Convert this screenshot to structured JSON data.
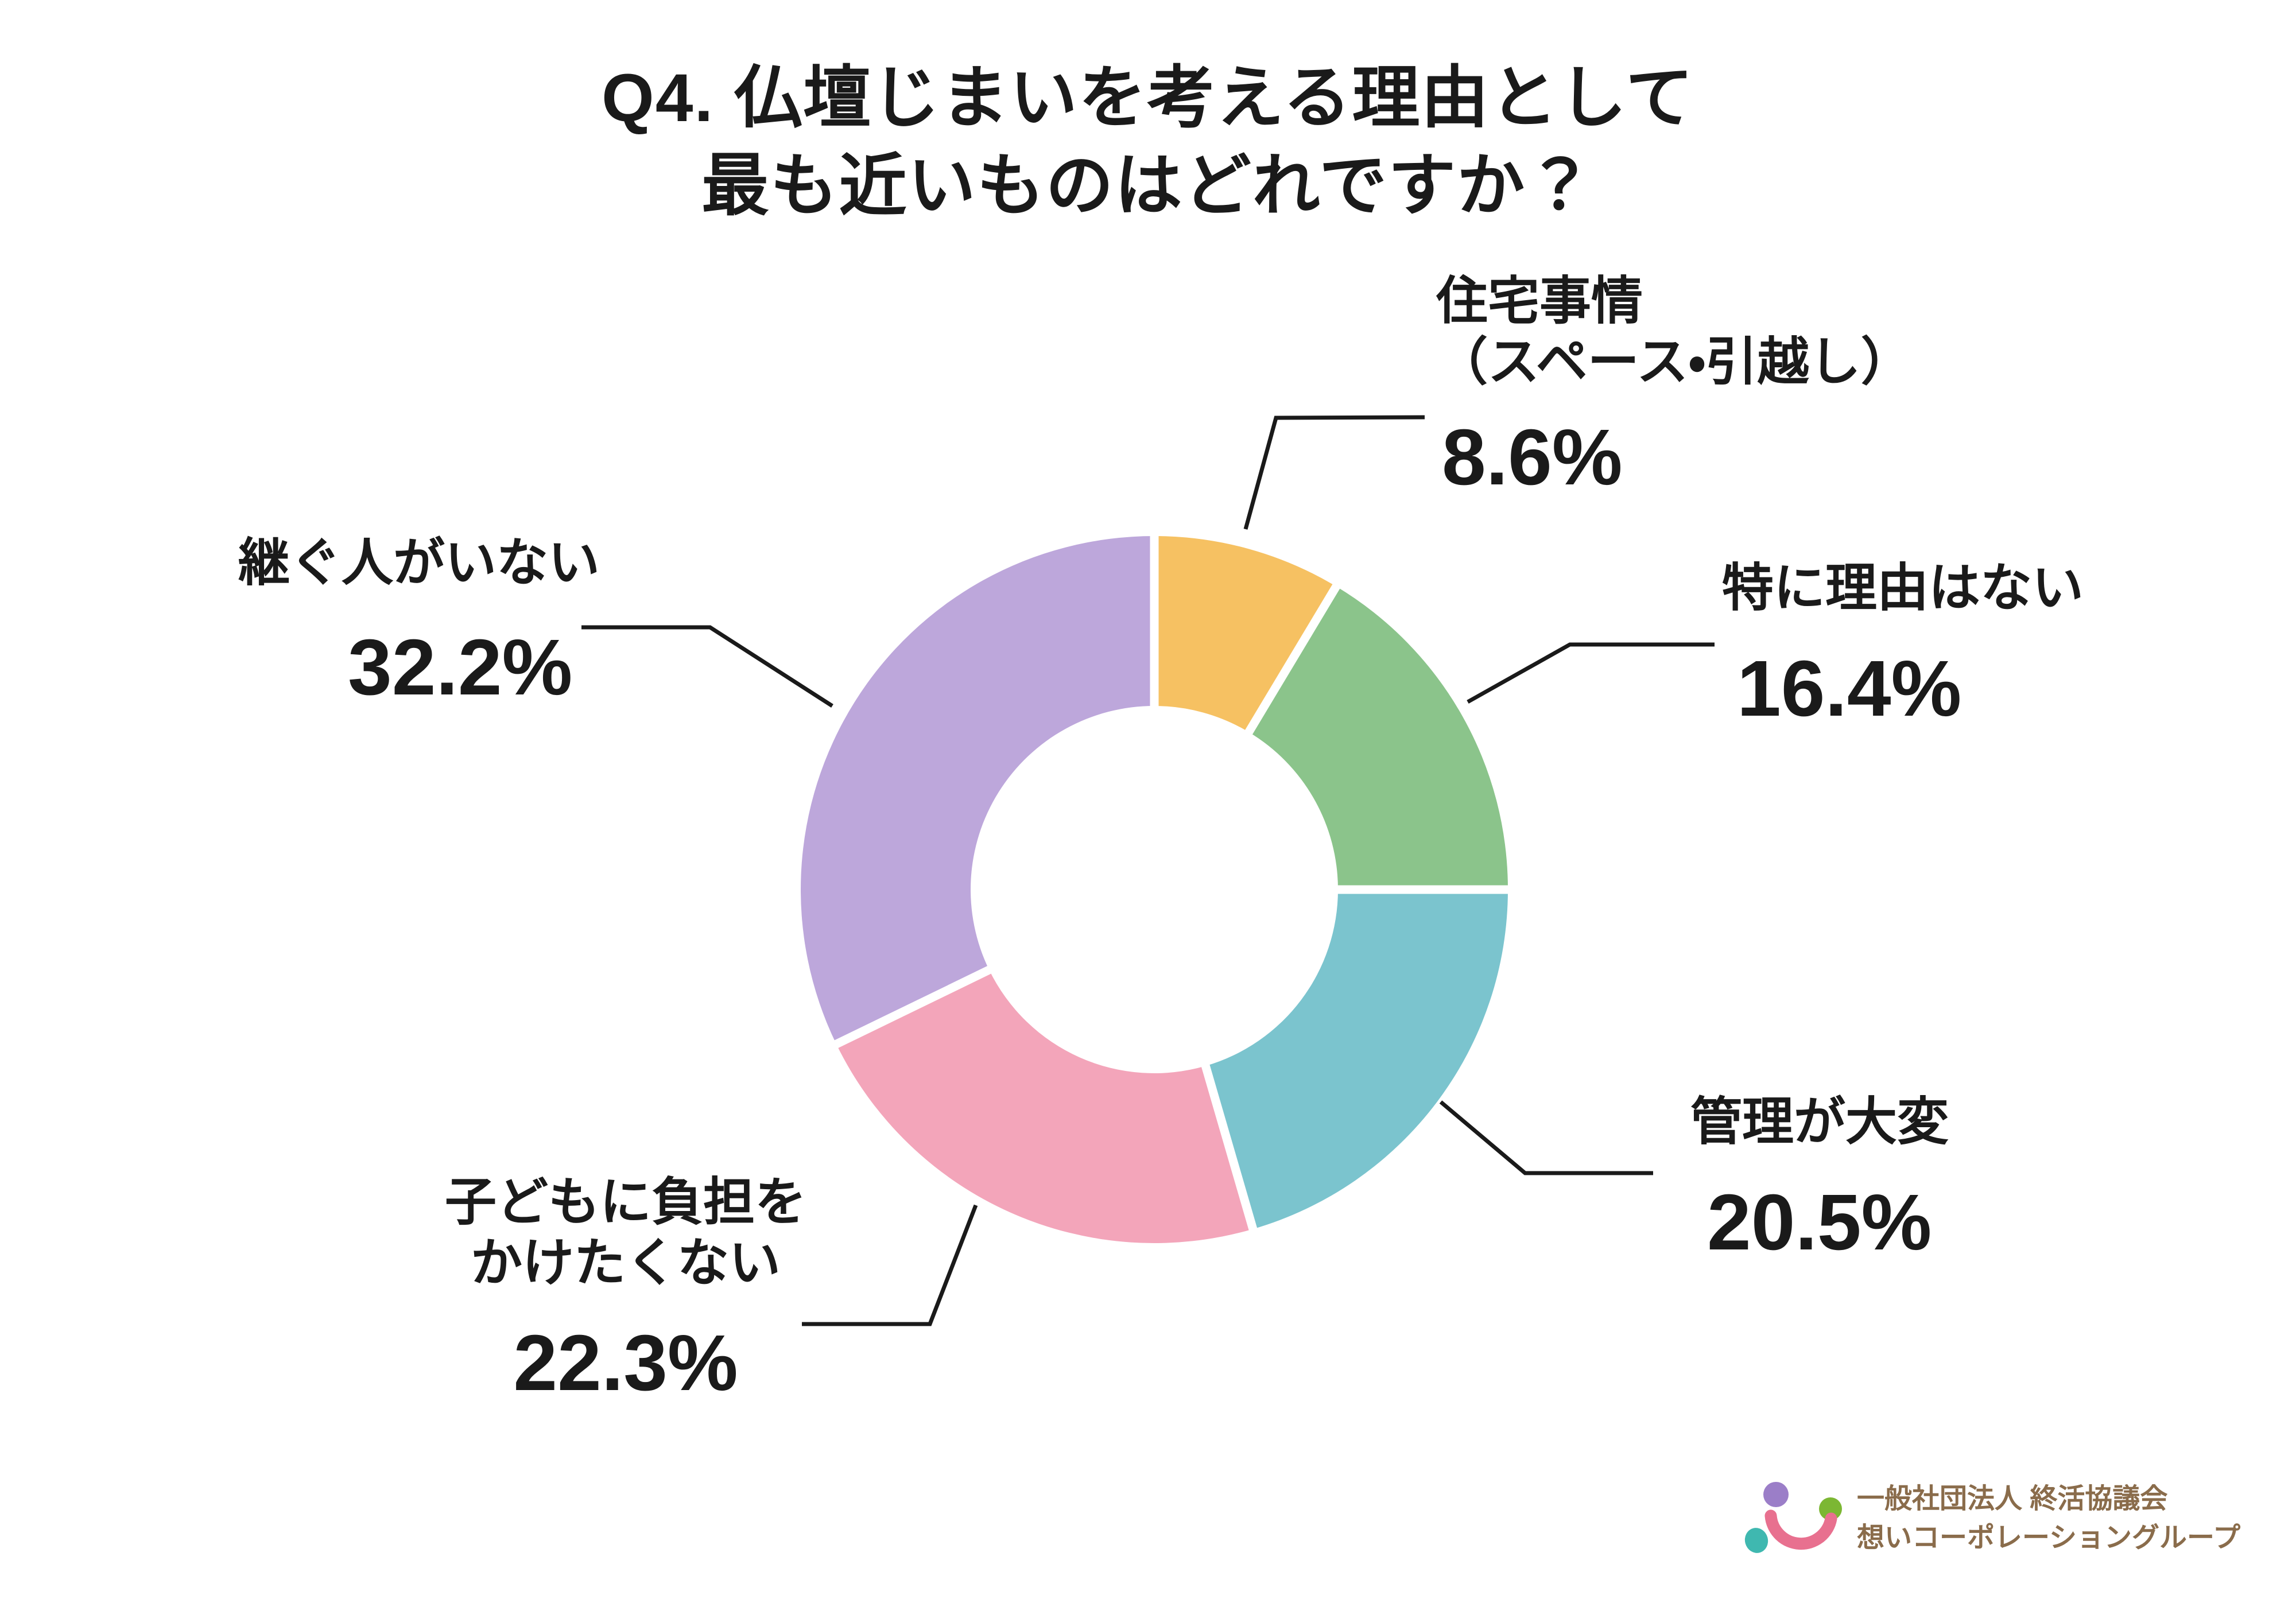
{
  "title": {
    "line1": "Q4. 仏壇じまいを考える理由として",
    "line2": "最も近いものはどれですか？"
  },
  "chart_data": {
    "type": "pie",
    "subtype": "donut",
    "title": "Q4. 仏壇じまいを考える理由として最も近いものはどれですか？",
    "unit": "%",
    "direction": "clockwise",
    "start_angle_deg": 0,
    "inner_radius_ratio": 0.52,
    "legend_position": "none",
    "segments": [
      {
        "id": "housing",
        "label": "住宅事情（スペース・引越し）",
        "value": 8.6,
        "color": "#F6C162"
      },
      {
        "id": "no-particular-reason",
        "label": "特に理由はない",
        "value": 16.4,
        "color": "#8BC48B"
      },
      {
        "id": "hard-to-maintain",
        "label": "管理が大変",
        "value": 20.5,
        "color": "#7BC4CE"
      },
      {
        "id": "burden-on-children",
        "label": "子どもに負担をかけたくない",
        "value": 22.3,
        "color": "#F3A5BA"
      },
      {
        "id": "no-successor",
        "label": "継ぐ人がいない",
        "value": 32.2,
        "color": "#BDA7DB"
      }
    ]
  },
  "callouts": [
    {
      "id": "housing",
      "name_lines": [
        "住宅事情",
        "（スペース・引越し）"
      ],
      "value": "8.6%"
    },
    {
      "id": "no-particular-reason",
      "name_lines": [
        "特に理由はない"
      ],
      "value": "16.4%"
    },
    {
      "id": "hard-to-maintain",
      "name_lines": [
        "管理が大変"
      ],
      "value": "20.5%"
    },
    {
      "id": "burden-on-children",
      "name_lines": [
        "子どもに負担を",
        "かけたくない"
      ],
      "value": "22.3%"
    },
    {
      "id": "no-successor",
      "name_lines": [
        "継ぐ人がいない"
      ],
      "value": "32.2%"
    }
  ],
  "logo": {
    "line1": "一般社団法人 終活協議会",
    "line2": "想いコーポレーショングループ",
    "text_color": "#8A6C4B",
    "mark_colors": {
      "purple_dot": "#9B7EC8",
      "green_dot": "#7CB733",
      "teal_dot": "#3FB8B0",
      "pink_smile": "#E8708F"
    }
  }
}
